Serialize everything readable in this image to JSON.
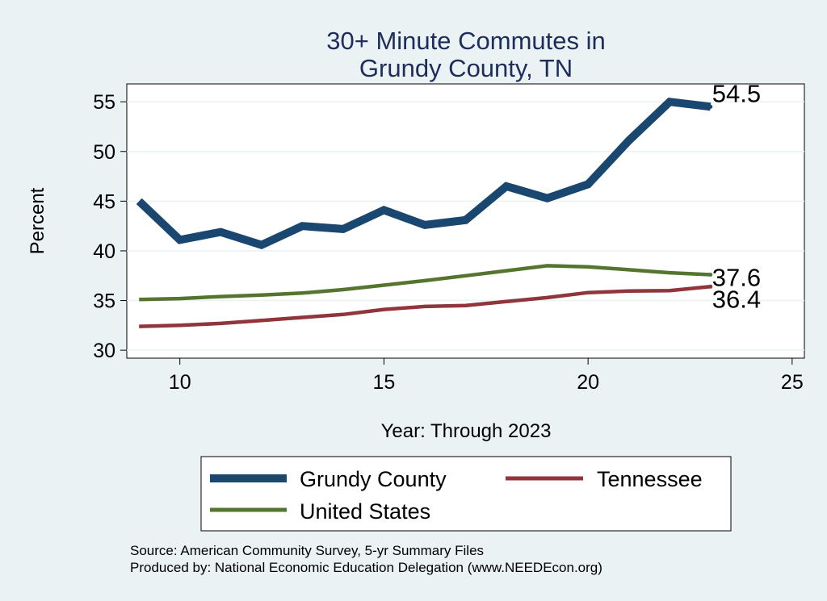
{
  "chart_data": {
    "type": "line",
    "title_lines": [
      "30+ Minute Commutes in",
      "Grundy County, TN"
    ],
    "xlabel": "Year: Through 2023",
    "ylabel": "Percent",
    "xlim": [
      8.7,
      25.3
    ],
    "ylim": [
      29.2,
      56.8
    ],
    "xticks": [
      10,
      15,
      20,
      25
    ],
    "yticks": [
      30,
      35,
      40,
      45,
      50,
      55
    ],
    "grid": true,
    "legend_position": "bottom",
    "series": [
      {
        "name": "Grundy County",
        "color": "#1a476f",
        "x": [
          9,
          10,
          11,
          12,
          13,
          14,
          15,
          16,
          17,
          18,
          19,
          20,
          21,
          22,
          23
        ],
        "values": [
          45.0,
          41.1,
          41.9,
          40.6,
          42.5,
          42.2,
          44.1,
          42.6,
          43.1,
          46.5,
          45.3,
          46.7,
          51.1,
          55.0,
          54.5
        ],
        "end_label": "54.5"
      },
      {
        "name": "Tennessee",
        "color": "#90353b",
        "x": [
          9,
          10,
          11,
          12,
          13,
          14,
          15,
          16,
          17,
          18,
          19,
          20,
          21,
          22,
          23
        ],
        "values": [
          32.4,
          32.5,
          32.7,
          33.0,
          33.3,
          33.6,
          34.1,
          34.4,
          34.5,
          34.9,
          35.3,
          35.8,
          35.95,
          36.0,
          36.4
        ],
        "end_label": "36.4"
      },
      {
        "name": "United States",
        "color": "#55752f",
        "x": [
          9,
          10,
          11,
          12,
          13,
          14,
          15,
          16,
          17,
          18,
          19,
          20,
          21,
          22,
          23
        ],
        "values": [
          35.1,
          35.2,
          35.4,
          35.55,
          35.75,
          36.1,
          36.55,
          37.0,
          37.5,
          38.0,
          38.5,
          38.4,
          38.1,
          37.8,
          37.6
        ],
        "end_label": "37.6"
      }
    ],
    "legend_order": [
      "Grundy County",
      "Tennessee",
      "United States"
    ],
    "source_lines": [
      "Source: American Community Survey, 5-yr Summary Files",
      "Produced by: National Economic Education Delegation (www.NEEDEcon.org)"
    ]
  }
}
